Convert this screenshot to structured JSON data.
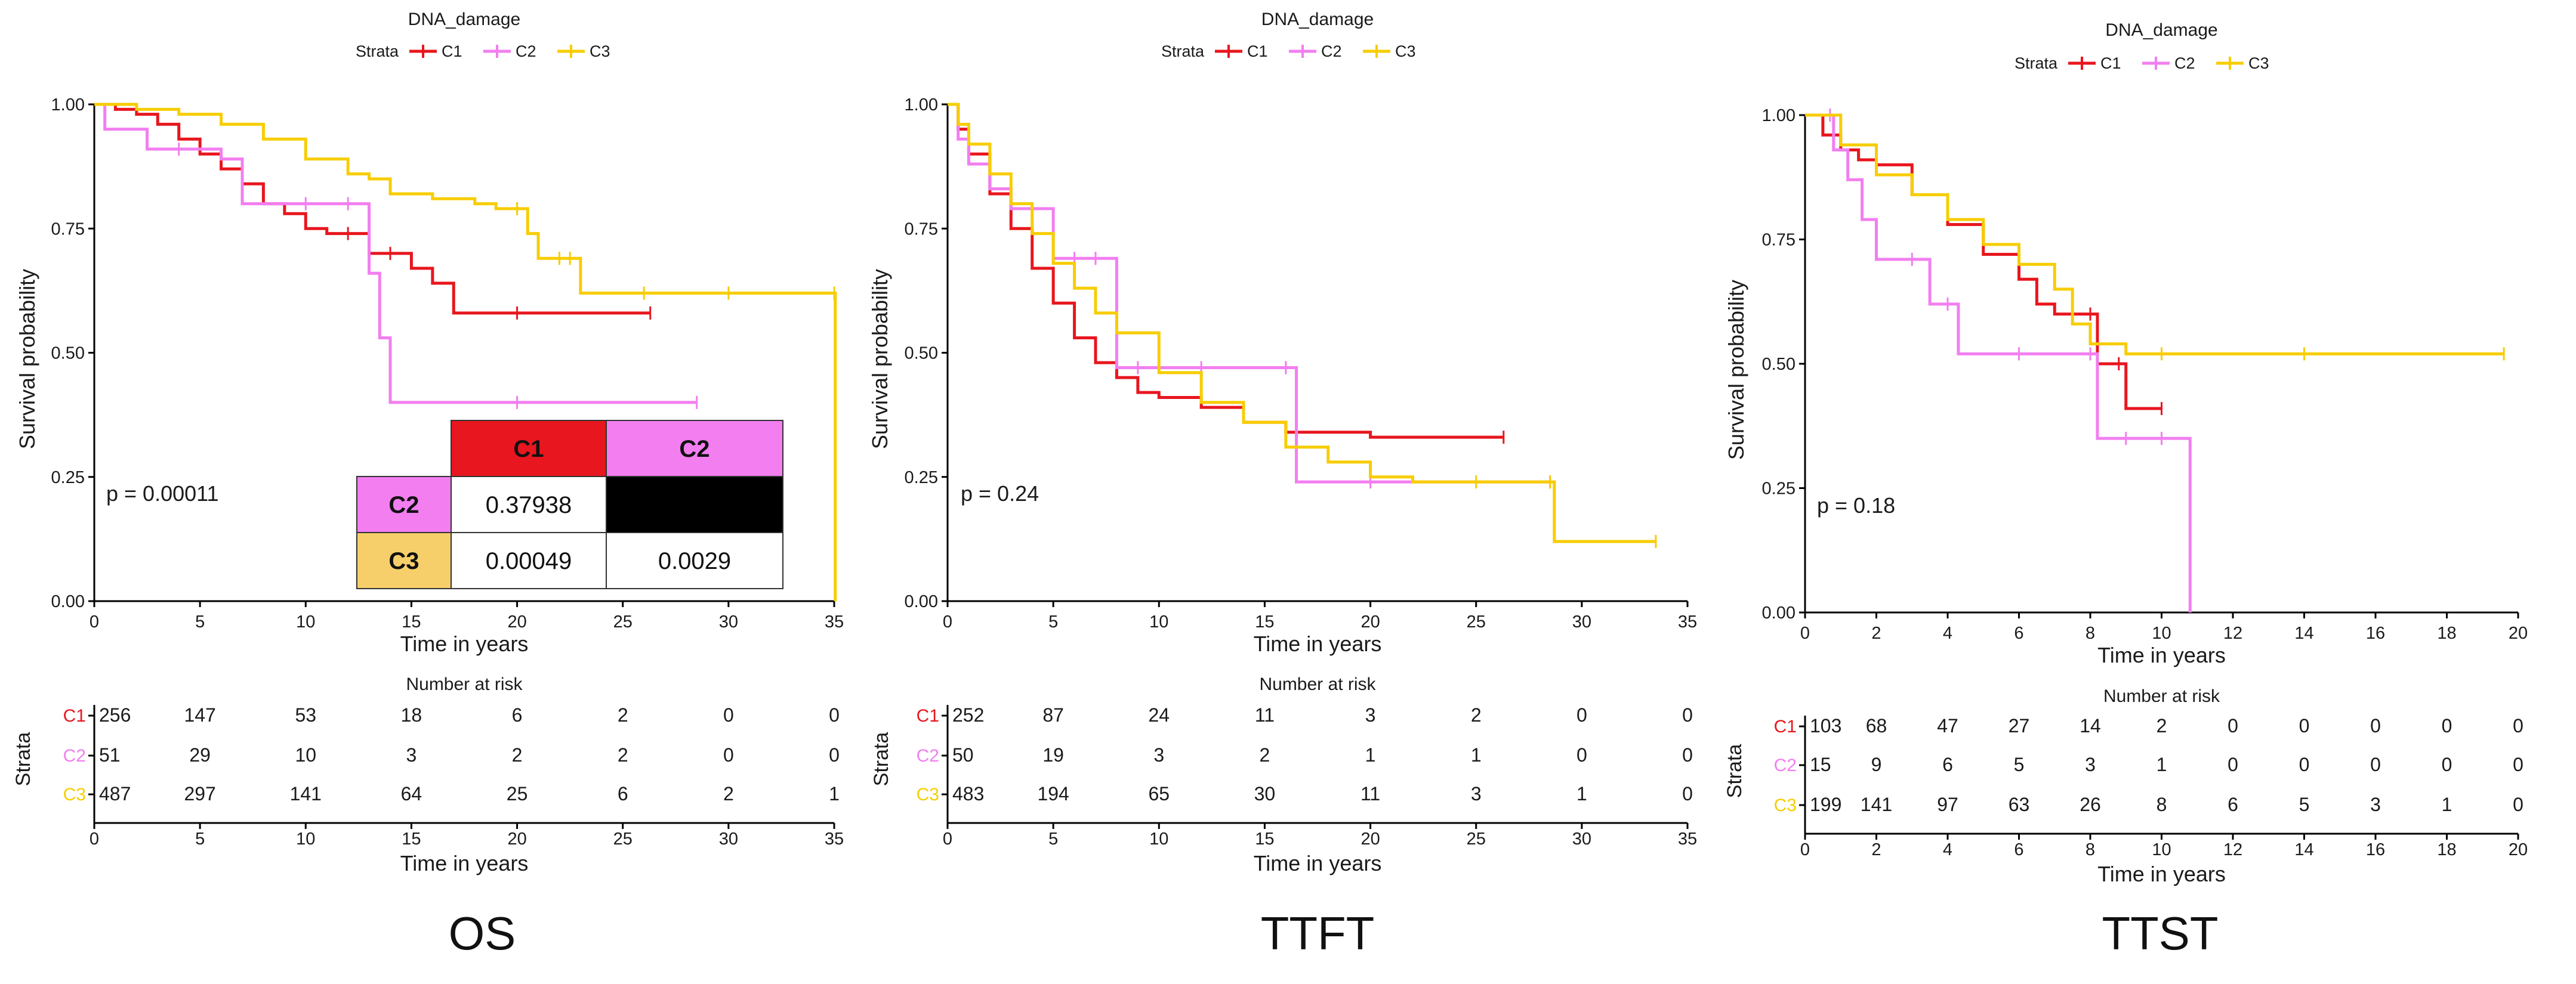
{
  "colors": {
    "C1": "#e8161e",
    "C2": "#f27ef0",
    "C3": "#f7cd00",
    "axis": "#000000",
    "text": "#1a1a1a"
  },
  "chart_data": [
    {
      "type": "line",
      "subtype": "kaplan-meier",
      "panel_label": "OS",
      "title": "DNA_damage",
      "legend_title": "Strata",
      "legend": [
        "C1",
        "C2",
        "C3"
      ],
      "xlabel": "Time in years",
      "ylabel": "Survival probability",
      "xlim": [
        0,
        35
      ],
      "ylim": [
        0,
        1
      ],
      "xticks": [
        "0",
        "5",
        "10",
        "15",
        "20",
        "25",
        "30",
        "35"
      ],
      "yticks": [
        "0.00",
        "0.25",
        "0.50",
        "0.75",
        "1.00"
      ],
      "pvalue": "p = 0.00011",
      "series": [
        {
          "name": "C1",
          "x": [
            0,
            1,
            2,
            3,
            4,
            5,
            6,
            7,
            8,
            9,
            10,
            11,
            12,
            13,
            14,
            15,
            16,
            17,
            20,
            26.3
          ],
          "y": [
            1,
            0.99,
            0.98,
            0.96,
            0.93,
            0.9,
            0.87,
            0.84,
            0.8,
            0.78,
            0.75,
            0.74,
            0.74,
            0.7,
            0.7,
            0.67,
            0.64,
            0.58,
            0.58,
            0.58
          ]
        },
        {
          "name": "C2",
          "x": [
            0,
            0.5,
            2.5,
            4,
            6,
            7,
            10,
            12,
            13,
            13.5,
            14,
            20,
            28.5
          ],
          "y": [
            1,
            0.95,
            0.91,
            0.91,
            0.89,
            0.8,
            0.8,
            0.8,
            0.66,
            0.53,
            0.4,
            0.4,
            0.4
          ]
        },
        {
          "name": "C3",
          "x": [
            0,
            2,
            4,
            6,
            8,
            10,
            12,
            13,
            14,
            16,
            18,
            19,
            20,
            20.5,
            21,
            22,
            22.5,
            23,
            26,
            30,
            35,
            35.05
          ],
          "y": [
            1,
            0.99,
            0.98,
            0.96,
            0.93,
            0.89,
            0.86,
            0.85,
            0.82,
            0.81,
            0.8,
            0.79,
            0.79,
            0.74,
            0.69,
            0.69,
            0.69,
            0.62,
            0.62,
            0.62,
            0.62,
            0
          ]
        }
      ],
      "pairwise_table": {
        "col_headers": [
          "C1",
          "C2"
        ],
        "rows": [
          {
            "label": "C2",
            "values": [
              "0.37938",
              ""
            ]
          },
          {
            "label": "C3",
            "values": [
              "0.00049",
              "0.0029"
            ]
          }
        ]
      },
      "risk_table": {
        "title": "Number at risk",
        "ylabel": "Strata",
        "xlabel": "Time in years",
        "times": [
          0,
          5,
          10,
          15,
          20,
          25,
          30,
          35
        ],
        "rows": [
          {
            "name": "C1",
            "values": [
              "256",
              "147",
              "53",
              "18",
              "6",
              "2",
              "0",
              "0"
            ]
          },
          {
            "name": "C2",
            "values": [
              "51",
              "29",
              "10",
              "3",
              "2",
              "2",
              "0",
              "0"
            ]
          },
          {
            "name": "C3",
            "values": [
              "487",
              "297",
              "141",
              "64",
              "25",
              "6",
              "2",
              "1"
            ]
          }
        ]
      }
    },
    {
      "type": "line",
      "subtype": "kaplan-meier",
      "panel_label": "TTFT",
      "title": "DNA_damage",
      "legend_title": "Strata",
      "legend": [
        "C1",
        "C2",
        "C3"
      ],
      "xlabel": "Time in years",
      "ylabel": "Survival probability",
      "xlim": [
        0,
        35
      ],
      "ylim": [
        0,
        1
      ],
      "xticks": [
        "0",
        "5",
        "10",
        "15",
        "20",
        "25",
        "30",
        "35"
      ],
      "yticks": [
        "0.00",
        "0.25",
        "0.50",
        "0.75",
        "1.00"
      ],
      "pvalue": "p = 0.24",
      "series": [
        {
          "name": "C1",
          "x": [
            0,
            0.5,
            1,
            2,
            3,
            4,
            5,
            6,
            7,
            8,
            9,
            10,
            12,
            14,
            16,
            20,
            26.3
          ],
          "y": [
            1,
            0.95,
            0.9,
            0.82,
            0.75,
            0.67,
            0.6,
            0.53,
            0.48,
            0.45,
            0.42,
            0.41,
            0.39,
            0.36,
            0.34,
            0.33,
            0.33
          ]
        },
        {
          "name": "C2",
          "x": [
            0,
            0.5,
            1,
            2,
            3,
            4,
            5,
            6,
            7,
            8,
            9,
            12,
            16,
            16.5,
            20,
            28.5
          ],
          "y": [
            1,
            0.93,
            0.88,
            0.83,
            0.79,
            0.79,
            0.69,
            0.69,
            0.69,
            0.47,
            0.47,
            0.47,
            0.47,
            0.24,
            0.24,
            0.24
          ]
        },
        {
          "name": "C3",
          "x": [
            0,
            0.5,
            1,
            2,
            3,
            4,
            5,
            6,
            7,
            8,
            10,
            12,
            14,
            16,
            18,
            20,
            22,
            25,
            28.5,
            28.7,
            33.5
          ],
          "y": [
            1,
            0.96,
            0.92,
            0.86,
            0.8,
            0.74,
            0.68,
            0.63,
            0.58,
            0.54,
            0.46,
            0.4,
            0.36,
            0.31,
            0.28,
            0.25,
            0.24,
            0.24,
            0.24,
            0.12,
            0.12
          ]
        }
      ],
      "risk_table": {
        "title": "Number at risk",
        "ylabel": "Strata",
        "xlabel": "Time in years",
        "times": [
          0,
          5,
          10,
          15,
          20,
          25,
          30,
          35
        ],
        "rows": [
          {
            "name": "C1",
            "values": [
              "252",
              "87",
              "24",
              "11",
              "3",
              "2",
              "0",
              "0"
            ]
          },
          {
            "name": "C2",
            "values": [
              "50",
              "19",
              "3",
              "2",
              "1",
              "1",
              "0",
              "0"
            ]
          },
          {
            "name": "C3",
            "values": [
              "483",
              "194",
              "65",
              "30",
              "11",
              "3",
              "1",
              "0"
            ]
          }
        ]
      }
    },
    {
      "type": "line",
      "subtype": "kaplan-meier",
      "panel_label": "TTST",
      "title": "DNA_damage",
      "legend_title": "Strata",
      "legend": [
        "C1",
        "C2",
        "C3"
      ],
      "xlabel": "Time in years",
      "ylabel": "Survival probability",
      "xlim": [
        0,
        20
      ],
      "ylim": [
        0,
        1
      ],
      "xticks": [
        "0",
        "2",
        "4",
        "6",
        "8",
        "10",
        "12",
        "14",
        "16",
        "18",
        "20"
      ],
      "yticks": [
        "0.00",
        "0.25",
        "0.50",
        "0.75",
        "1.00"
      ],
      "pvalue": "p = 0.18",
      "series": [
        {
          "name": "C1",
          "x": [
            0,
            0.5,
            1,
            1.5,
            2,
            3,
            4,
            5,
            6,
            6.5,
            7,
            8,
            8.2,
            8.8,
            9,
            10
          ],
          "y": [
            1,
            0.96,
            0.93,
            0.91,
            0.9,
            0.84,
            0.78,
            0.72,
            0.67,
            0.62,
            0.6,
            0.6,
            0.5,
            0.5,
            0.41,
            0.41
          ]
        },
        {
          "name": "C2",
          "x": [
            0,
            0.7,
            0.8,
            1.2,
            1.6,
            2,
            3,
            3.5,
            4,
            4.3,
            6,
            8,
            8.2,
            9,
            10,
            10.8
          ],
          "y": [
            1,
            1,
            0.93,
            0.87,
            0.79,
            0.71,
            0.71,
            0.62,
            0.62,
            0.52,
            0.52,
            0.52,
            0.35,
            0.35,
            0.35,
            0
          ]
        },
        {
          "name": "C3",
          "x": [
            0,
            1,
            2,
            3,
            4,
            5,
            6,
            7,
            7.5,
            8,
            9,
            10,
            14,
            19.6
          ],
          "y": [
            1,
            0.94,
            0.88,
            0.84,
            0.79,
            0.74,
            0.7,
            0.65,
            0.58,
            0.54,
            0.52,
            0.52,
            0.52,
            0.52
          ]
        }
      ],
      "risk_table": {
        "title": "Number at risk",
        "ylabel": "Strata",
        "xlabel": "Time in years",
        "times": [
          0,
          2,
          4,
          6,
          8,
          10,
          12,
          14,
          16,
          18,
          20
        ],
        "rows": [
          {
            "name": "C1",
            "values": [
              "103",
              "68",
              "47",
              "27",
              "14",
              "2",
              "0",
              "0",
              "0",
              "0",
              "0"
            ]
          },
          {
            "name": "C2",
            "values": [
              "15",
              "9",
              "6",
              "5",
              "3",
              "1",
              "0",
              "0",
              "0",
              "0",
              "0"
            ]
          },
          {
            "name": "C3",
            "values": [
              "199",
              "141",
              "97",
              "63",
              "26",
              "8",
              "6",
              "5",
              "3",
              "1",
              "0"
            ]
          }
        ]
      }
    }
  ]
}
